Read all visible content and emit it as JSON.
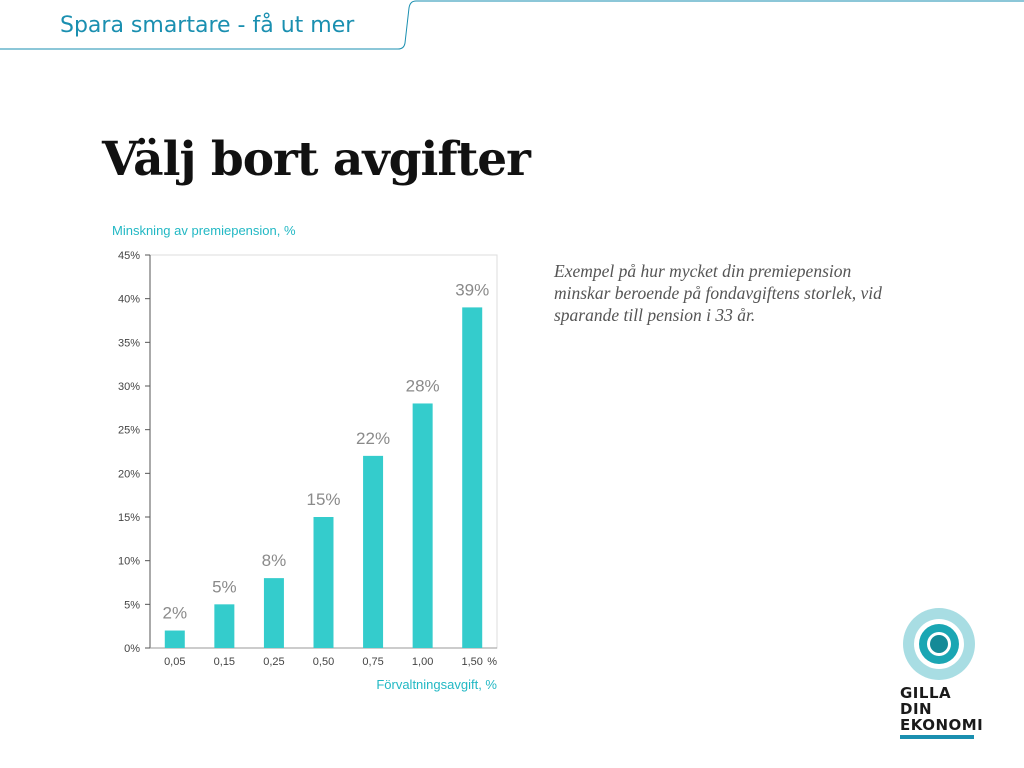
{
  "header": {
    "title": "Spara smartare - få ut mer"
  },
  "slide": {
    "title": "Välj bort avgifter",
    "description": "Exempel på hur mycket din premiepension minskar beroende på fondavgiftens storlek, vid sparande till pension i 33 år."
  },
  "colors": {
    "accent": "#34cccc",
    "header": "#1a8fb0",
    "value_label": "#8a8a8a"
  },
  "logo": {
    "line1": "GILLA DIN",
    "line2": "EKONOMI",
    "icon": "concentric-circles-icon"
  },
  "chart_data": {
    "type": "bar",
    "title": "",
    "ylabel": "Minskning av premiepension, %",
    "xlabel": "Förvaltningsavgift, %",
    "x_unit_suffix": "%",
    "categories": [
      "0,05",
      "0,15",
      "0,25",
      "0,50",
      "0,75",
      "1,00",
      "1,50"
    ],
    "values": [
      2,
      5,
      8,
      15,
      22,
      28,
      39
    ],
    "value_labels": [
      "2%",
      "5%",
      "8%",
      "15%",
      "22%",
      "28%",
      "39%"
    ],
    "ylim": [
      0,
      45
    ],
    "yticks": [
      0,
      5,
      10,
      15,
      20,
      25,
      30,
      35,
      40,
      45
    ],
    "ytick_labels": [
      "0%",
      "5%",
      "10%",
      "15%",
      "20%",
      "25%",
      "30%",
      "35%",
      "40%",
      "45%"
    ],
    "grid": false,
    "legend": "none"
  }
}
